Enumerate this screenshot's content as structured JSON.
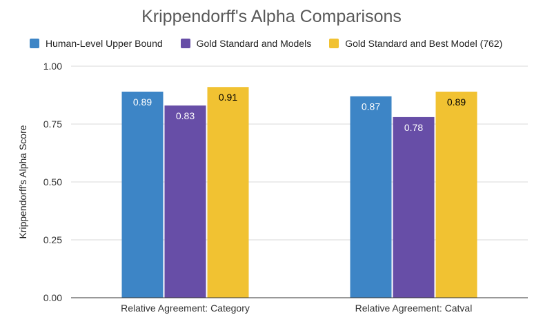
{
  "chart_data": {
    "type": "bar",
    "title": "Krippendorff's Alpha Comparisons",
    "xlabel": "",
    "ylabel": "Krippendorff's Alpha Score",
    "ylim": [
      0,
      1
    ],
    "y_ticks": [
      "0.00",
      "0.25",
      "0.50",
      "0.75",
      "1.00"
    ],
    "categories": [
      "Relative Agreement: Category",
      "Relative Agreement: Catval"
    ],
    "series": [
      {
        "name": "Human-Level Upper Bound",
        "color": "#3d85c6",
        "label_color": "#ffffff",
        "values": [
          0.89,
          0.87
        ],
        "labels": [
          "0.89",
          "0.87"
        ]
      },
      {
        "name": "Gold Standard and Models",
        "color": "#674ea7",
        "label_color": "#ffffff",
        "values": [
          0.83,
          0.78
        ],
        "labels": [
          "0.83",
          "0.78"
        ]
      },
      {
        "name": "Gold Standard and Best Model (762)",
        "color": "#f1c232",
        "label_color": "#000000",
        "values": [
          0.91,
          0.89
        ],
        "labels": [
          "0.91",
          "0.89"
        ]
      }
    ],
    "legend_position": "top",
    "grid": true
  }
}
